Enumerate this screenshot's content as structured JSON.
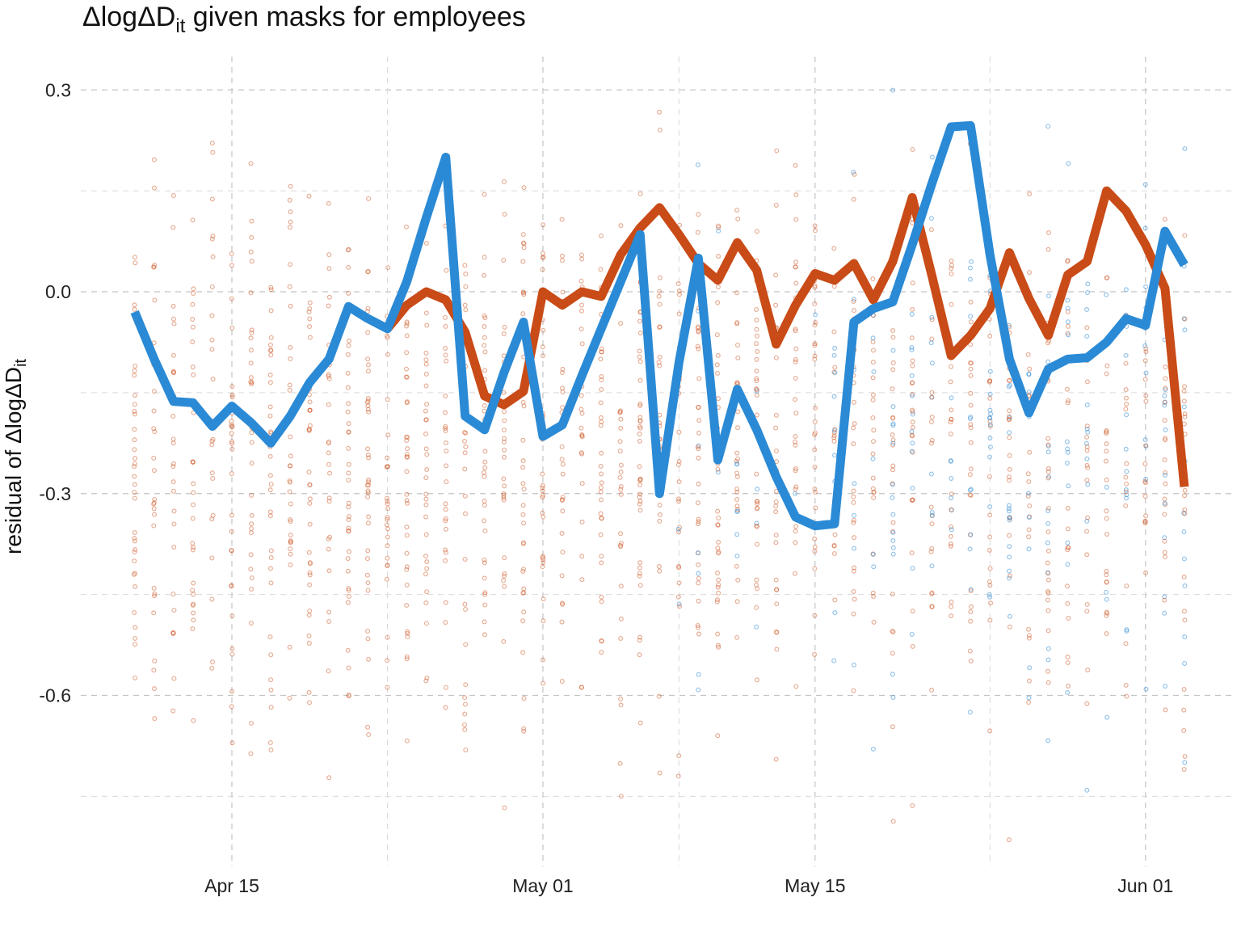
{
  "chart_data": {
    "type": "line",
    "title": {
      "prefix": "ΔlogΔD",
      "sub": "it",
      "suffix": " given masks for employees"
    },
    "ylabel": {
      "prefix": "residual of ΔlogΔD",
      "sub": "it"
    },
    "xlabel": "",
    "x_range": [
      "2020-04-09",
      "2020-06-04"
    ],
    "ylim": [
      -0.85,
      0.35
    ],
    "y_ticks": [
      0.3,
      0.0,
      -0.3,
      -0.6
    ],
    "y_tick_labels": [
      "0.3",
      "0.0",
      "-0.3",
      "-0.6"
    ],
    "y_minor_ticks": [
      0.15,
      -0.15,
      -0.45,
      -0.75
    ],
    "x_ticks": [
      "2020-04-15",
      "2020-05-01",
      "2020-05-15",
      "2020-06-01"
    ],
    "x_tick_labels": [
      "Apr 15",
      "May 01",
      "May 15",
      "Jun 01"
    ],
    "x_minor_ticks": [
      "2020-04-23",
      "2020-05-08",
      "2020-05-24"
    ],
    "grid": true,
    "legend": "none",
    "colors": {
      "orange": "#c94b17",
      "blue": "#2b8ad5"
    },
    "dates": [
      "2020-04-10",
      "2020-04-11",
      "2020-04-12",
      "2020-04-13",
      "2020-04-14",
      "2020-04-15",
      "2020-04-16",
      "2020-04-17",
      "2020-04-18",
      "2020-04-19",
      "2020-04-20",
      "2020-04-21",
      "2020-04-22",
      "2020-04-23",
      "2020-04-24",
      "2020-04-25",
      "2020-04-26",
      "2020-04-27",
      "2020-04-28",
      "2020-04-29",
      "2020-04-30",
      "2020-05-01",
      "2020-05-02",
      "2020-05-03",
      "2020-05-04",
      "2020-05-05",
      "2020-05-06",
      "2020-05-07",
      "2020-05-08",
      "2020-05-09",
      "2020-05-10",
      "2020-05-11",
      "2020-05-12",
      "2020-05-13",
      "2020-05-14",
      "2020-05-15",
      "2020-05-16",
      "2020-05-17",
      "2020-05-18",
      "2020-05-19",
      "2020-05-20",
      "2020-05-21",
      "2020-05-22",
      "2020-05-23",
      "2020-05-24",
      "2020-05-25",
      "2020-05-26",
      "2020-05-27",
      "2020-05-28",
      "2020-05-29",
      "2020-05-30",
      "2020-05-31",
      "2020-06-01",
      "2020-06-02",
      "2020-06-03"
    ],
    "series": [
      {
        "color": "#c94b17",
        "values": [
          null,
          null,
          null,
          null,
          null,
          null,
          null,
          null,
          null,
          null,
          null,
          null,
          null,
          -0.055,
          -0.02,
          0.0,
          -0.012,
          -0.06,
          -0.155,
          -0.168,
          -0.148,
          0.0,
          -0.02,
          0.0,
          -0.007,
          0.055,
          0.095,
          0.125,
          0.085,
          0.042,
          0.017,
          0.073,
          0.032,
          -0.078,
          -0.02,
          0.027,
          0.017,
          0.042,
          -0.012,
          0.045,
          0.14,
          0.025,
          -0.095,
          -0.065,
          -0.025,
          0.058,
          -0.01,
          -0.065,
          0.025,
          0.045,
          0.15,
          0.12,
          0.07,
          0.005,
          -0.29
        ]
      },
      {
        "color": "#2b8ad5",
        "values": [
          -0.03,
          -0.1,
          -0.163,
          -0.165,
          -0.2,
          -0.17,
          -0.195,
          -0.225,
          -0.185,
          -0.135,
          -0.1,
          -0.022,
          -0.04,
          -0.055,
          0.015,
          0.11,
          0.2,
          -0.185,
          -0.205,
          -0.12,
          -0.045,
          -0.215,
          -0.198,
          -0.125,
          -0.055,
          0.015,
          0.085,
          -0.3,
          -0.105,
          0.05,
          -0.25,
          -0.145,
          -0.205,
          -0.275,
          -0.335,
          -0.348,
          -0.345,
          -0.045,
          -0.025,
          -0.015,
          0.07,
          0.16,
          0.245,
          0.247,
          0.055,
          -0.1,
          -0.18,
          -0.115,
          -0.1,
          -0.098,
          -0.075,
          -0.04,
          -0.05,
          0.09,
          0.04
        ]
      }
    ]
  }
}
